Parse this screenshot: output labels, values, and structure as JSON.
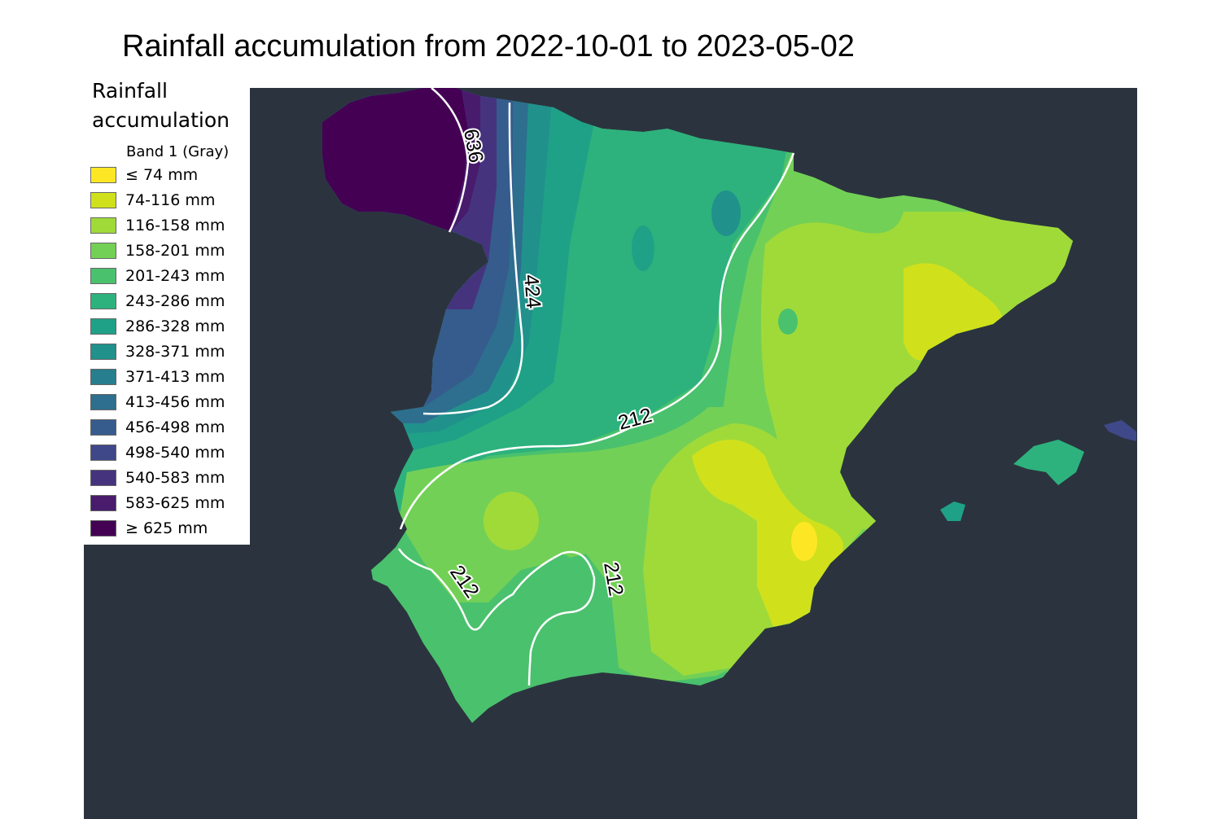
{
  "title": "Rainfall accumulation from 2022-10-01 to 2023-05-02",
  "legend": {
    "title_line1": "Rainfall",
    "title_line2": "accumulation",
    "band": "Band 1 (Gray)",
    "items": [
      {
        "label": "≤ 74 mm",
        "color": "#fde725"
      },
      {
        "label": "74-116 mm",
        "color": "#d0e11c"
      },
      {
        "label": "116-158 mm",
        "color": "#a0da39"
      },
      {
        "label": "158-201 mm",
        "color": "#73d056"
      },
      {
        "label": "201-243 mm",
        "color": "#4ac16d"
      },
      {
        "label": "243-286 mm",
        "color": "#2db27d"
      },
      {
        "label": "286-328 mm",
        "color": "#1fa187"
      },
      {
        "label": "328-371 mm",
        "color": "#21918c"
      },
      {
        "label": "371-413 mm",
        "color": "#277f8e"
      },
      {
        "label": "413-456 mm",
        "color": "#2e6e8e"
      },
      {
        "label": "456-498 mm",
        "color": "#365c8d"
      },
      {
        "label": "498-540 mm",
        "color": "#3f4889"
      },
      {
        "label": "540-583 mm",
        "color": "#46337e"
      },
      {
        "label": "583-625 mm",
        "color": "#481b6d"
      },
      {
        "label": "≥ 625 mm",
        "color": "#440154"
      }
    ]
  },
  "contours": {
    "c636": "636",
    "c424": "424",
    "c212a": "212",
    "c212b": "212",
    "c212c": "212"
  },
  "colors": {
    "background": "#2b343e",
    "contour": "#ffffff"
  }
}
